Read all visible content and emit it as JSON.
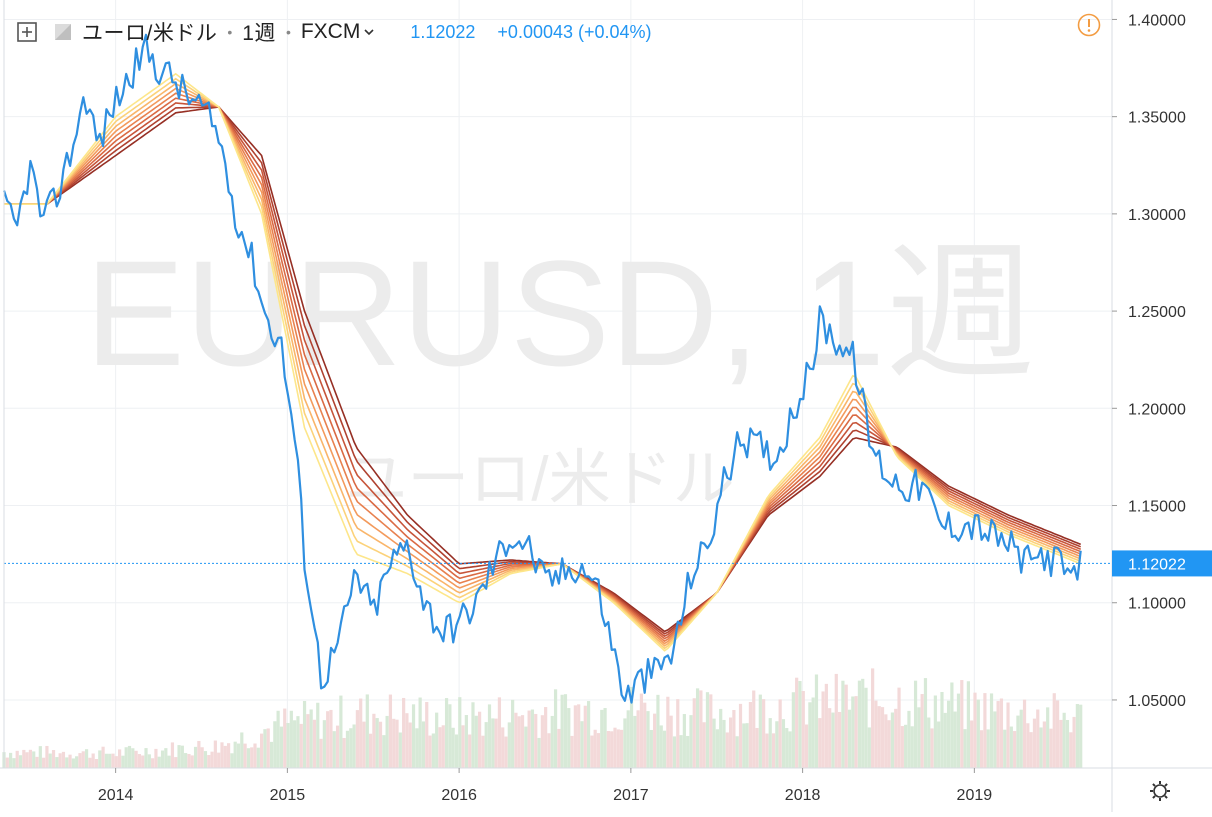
{
  "header": {
    "symbol": "ユーロ/米ドル",
    "interval": "1週",
    "exchange": "FXCM",
    "last_price": "1.12022",
    "change": "+0.00043 (+0.04%)",
    "icons": [
      "add-compare-icon",
      "symbol-square-icon",
      "chevron-down-icon",
      "alert-icon",
      "settings-gear-icon"
    ]
  },
  "watermark": {
    "main": "EURUSD, 1週",
    "sub": "ユーロ/米ドル"
  },
  "colors": {
    "price_line": "#2f8fe0",
    "ribbon": [
      "#fde68a",
      "#fcd27a",
      "#f9b56a",
      "#f39a5c",
      "#e8814f",
      "#da6a44",
      "#c7553a",
      "#b04230",
      "#962f24"
    ],
    "volume_up": "#d7e9d7",
    "volume_down": "#f3d9d9",
    "last_price_label": "#2196f3"
  },
  "chart_data": {
    "type": "line",
    "title": "",
    "xlabel": "",
    "ylabel": "",
    "y_axis": {
      "ticks": [
        "1.40000",
        "1.35000",
        "1.30000",
        "1.25000",
        "1.20000",
        "1.15000",
        "1.10000",
        "1.05000"
      ],
      "range": [
        1.015,
        1.41
      ],
      "last_price_label": "1.12022"
    },
    "x_axis": {
      "ticks": [
        "2014",
        "2015",
        "2016",
        "2017",
        "2018",
        "2019"
      ],
      "range": [
        2013.35,
        2019.72
      ]
    },
    "series": [
      {
        "x": [
          2013.35,
          2013.42,
          2013.5,
          2013.58,
          2013.66,
          2013.75,
          2013.8,
          2013.83,
          2013.9,
          2013.98,
          2014.08,
          2014.17,
          2014.25,
          2014.33,
          2014.42,
          2014.5,
          2014.6,
          2014.7,
          2014.8,
          2014.88,
          2014.96,
          2015.05,
          2015.1,
          2015.2,
          2015.3,
          2015.4,
          2015.5,
          2015.6,
          2015.7,
          2015.8,
          2015.9,
          2016.0,
          2016.1,
          2016.2,
          2016.3,
          2016.4,
          2016.5,
          2016.6,
          2016.7,
          2016.8,
          2016.9,
          2016.97,
          2017.05,
          2017.15,
          2017.25,
          2017.35,
          2017.45,
          2017.55,
          2017.65,
          2017.75,
          2017.85,
          2017.95,
          2018.05,
          2018.1,
          2018.2,
          2018.3,
          2018.4,
          2018.5,
          2018.6,
          2018.7,
          2018.8,
          2018.9,
          2019.0,
          2019.1,
          2019.2,
          2019.3,
          2019.4,
          2019.5,
          2019.58,
          2019.62
        ],
        "values": [
          1.305,
          1.29,
          1.325,
          1.295,
          1.31,
          1.335,
          1.355,
          1.36,
          1.335,
          1.355,
          1.37,
          1.385,
          1.375,
          1.37,
          1.36,
          1.355,
          1.34,
          1.3,
          1.275,
          1.245,
          1.235,
          1.18,
          1.125,
          1.06,
          1.08,
          1.115,
          1.095,
          1.12,
          1.13,
          1.1,
          1.085,
          1.09,
          1.1,
          1.12,
          1.135,
          1.13,
          1.11,
          1.115,
          1.12,
          1.11,
          1.075,
          1.05,
          1.06,
          1.065,
          1.075,
          1.115,
          1.13,
          1.165,
          1.185,
          1.18,
          1.175,
          1.2,
          1.22,
          1.245,
          1.235,
          1.225,
          1.18,
          1.165,
          1.16,
          1.16,
          1.14,
          1.14,
          1.14,
          1.135,
          1.13,
          1.12,
          1.125,
          1.12,
          1.11,
          1.12
        ]
      }
    ],
    "ribbon_ema_peaks": {
      "x": [
        2013.35,
        2013.6,
        2014.0,
        2014.35,
        2014.6,
        2014.85,
        2015.1,
        2015.4,
        2015.7,
        2016.0,
        2016.3,
        2016.6,
        2016.9,
        2017.2,
        2017.5,
        2017.8,
        2018.1,
        2018.3,
        2018.55,
        2018.85,
        2019.2,
        2019.62
      ],
      "fast": [
        1.305,
        1.305,
        1.35,
        1.372,
        1.355,
        1.3,
        1.19,
        1.125,
        1.115,
        1.1,
        1.115,
        1.12,
        1.1,
        1.075,
        1.105,
        1.155,
        1.185,
        1.218,
        1.175,
        1.15,
        1.135,
        1.12
      ],
      "slow": [
        1.305,
        1.305,
        1.33,
        1.352,
        1.355,
        1.33,
        1.25,
        1.18,
        1.145,
        1.12,
        1.122,
        1.12,
        1.105,
        1.085,
        1.105,
        1.145,
        1.165,
        1.185,
        1.18,
        1.16,
        1.145,
        1.13
      ]
    },
    "volume_profile": [
      {
        "x": 2013.35,
        "v": 0.16
      },
      {
        "x": 2014.0,
        "v": 0.15
      },
      {
        "x": 2014.6,
        "v": 0.22
      },
      {
        "x": 2015.0,
        "v": 0.45
      },
      {
        "x": 2015.5,
        "v": 0.55
      },
      {
        "x": 2016.0,
        "v": 0.5
      },
      {
        "x": 2016.5,
        "v": 0.55
      },
      {
        "x": 2017.0,
        "v": 0.6
      },
      {
        "x": 2017.5,
        "v": 0.55
      },
      {
        "x": 2018.0,
        "v": 0.65
      },
      {
        "x": 2018.5,
        "v": 0.7
      },
      {
        "x": 2019.0,
        "v": 0.6
      },
      {
        "x": 2019.62,
        "v": 0.5
      }
    ]
  }
}
